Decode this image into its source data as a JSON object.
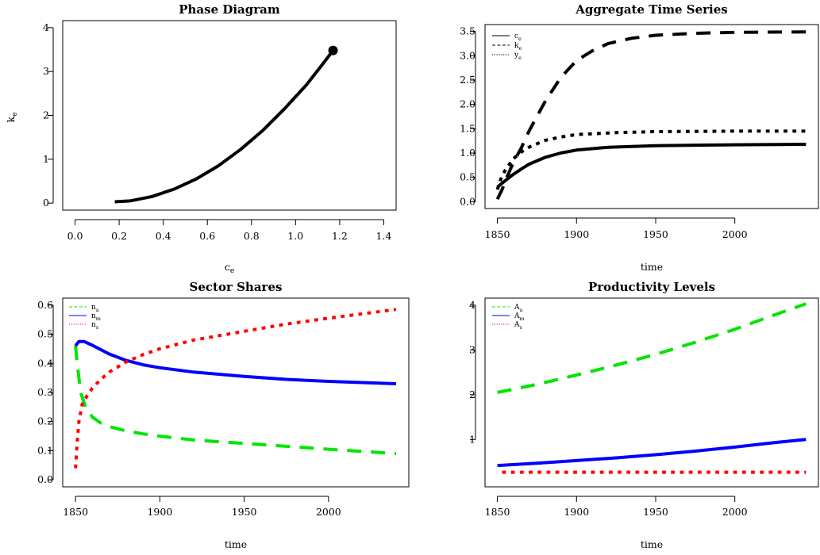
{
  "chart_data": [
    {
      "type": "line",
      "title": "Phase Diagram",
      "xlabel": "c",
      "xlabel_sub": "e",
      "ylabel": "k",
      "ylabel_sub": "e",
      "xlim": [
        0.0,
        1.4
      ],
      "ylim": [
        0,
        4
      ],
      "xticks": [
        0.0,
        0.2,
        0.4,
        0.6,
        0.8,
        1.0,
        1.2,
        1.4
      ],
      "xtick_labels": [
        "0.0",
        "0.2",
        "0.4",
        "0.6",
        "0.8",
        "1.0",
        "1.2",
        "1.4"
      ],
      "yticks": [
        0,
        1,
        2,
        3,
        4
      ],
      "ytick_labels": [
        "0",
        "1",
        "2",
        "3",
        "4"
      ],
      "series": [
        {
          "color": "#000000",
          "dash": "solid",
          "x": [
            0.18,
            0.25,
            0.35,
            0.45,
            0.55,
            0.65,
            0.75,
            0.85,
            0.95,
            1.05,
            1.12,
            1.17
          ],
          "y": [
            0.03,
            0.05,
            0.15,
            0.32,
            0.55,
            0.85,
            1.22,
            1.65,
            2.15,
            2.7,
            3.15,
            3.48
          ]
        }
      ],
      "end_point": {
        "x": 1.17,
        "y": 3.48
      }
    },
    {
      "type": "line",
      "title": "Aggregate Time Series",
      "xlabel": "time",
      "xlim": [
        1850,
        2045
      ],
      "ylim": [
        0.0,
        3.5
      ],
      "xticks": [
        1850,
        1900,
        1950,
        2000
      ],
      "xtick_labels": [
        "1850",
        "1900",
        "1950",
        "2000"
      ],
      "yticks": [
        0.0,
        0.5,
        1.0,
        1.5,
        2.0,
        2.5,
        3.0,
        3.5
      ],
      "ytick_labels": [
        "0.0",
        "0.5",
        "1.0",
        "1.5",
        "2.0",
        "2.5",
        "3.0",
        "3.5"
      ],
      "legend_position": "top-left",
      "series": [
        {
          "name": "c",
          "name_sub": "e",
          "color": "#000000",
          "dash": "solid",
          "x": [
            1850,
            1853,
            1856,
            1860,
            1865,
            1870,
            1880,
            1890,
            1900,
            1920,
            1950,
            2000,
            2045
          ],
          "y": [
            0.3,
            0.38,
            0.46,
            0.56,
            0.67,
            0.77,
            0.91,
            1.0,
            1.06,
            1.12,
            1.15,
            1.17,
            1.18
          ]
        },
        {
          "name": "k",
          "name_sub": "e",
          "color": "#000000",
          "dash": "dashed",
          "x": [
            1850,
            1853,
            1856,
            1860,
            1865,
            1870,
            1880,
            1890,
            1900,
            1910,
            1920,
            1935,
            1950,
            1975,
            2000,
            2045
          ],
          "y": [
            0.05,
            0.25,
            0.5,
            0.8,
            1.1,
            1.45,
            2.05,
            2.55,
            2.9,
            3.1,
            3.25,
            3.36,
            3.42,
            3.46,
            3.48,
            3.49
          ]
        },
        {
          "name": "y",
          "name_sub": "e",
          "color": "#000000",
          "dash": "dotted",
          "x": [
            1850,
            1852,
            1855,
            1860,
            1865,
            1870,
            1880,
            1890,
            1900,
            1925,
            1950,
            2000,
            2045
          ],
          "y": [
            0.25,
            0.45,
            0.65,
            0.88,
            1.02,
            1.12,
            1.26,
            1.33,
            1.38,
            1.42,
            1.44,
            1.45,
            1.45
          ]
        }
      ]
    },
    {
      "type": "line",
      "title": "Sector Shares",
      "xlabel": "time",
      "xlim": [
        1850,
        2040
      ],
      "ylim": [
        0.0,
        0.6
      ],
      "xticks": [
        1850,
        1900,
        1950,
        2000
      ],
      "xtick_labels": [
        "1850",
        "1900",
        "1950",
        "2000"
      ],
      "yticks": [
        0.0,
        0.1,
        0.2,
        0.3,
        0.4,
        0.5,
        0.6
      ],
      "ytick_labels": [
        "0.0",
        "0.1",
        "0.2",
        "0.3",
        "0.4",
        "0.5",
        "0.6"
      ],
      "legend_position": "top-left",
      "series": [
        {
          "name": "n",
          "name_sub": "a",
          "color": "#00e600",
          "dash": "dashed",
          "x": [
            1850,
            1851,
            1853,
            1856,
            1860,
            1865,
            1870,
            1880,
            1890,
            1900,
            1920,
            1950,
            1975,
            2000,
            2040
          ],
          "y": [
            0.46,
            0.4,
            0.3,
            0.25,
            0.215,
            0.195,
            0.183,
            0.168,
            0.158,
            0.15,
            0.137,
            0.125,
            0.115,
            0.105,
            0.09
          ]
        },
        {
          "name": "n",
          "name_sub": "m",
          "color": "#0000ff",
          "dash": "solid",
          "x": [
            1850,
            1852,
            1855,
            1860,
            1870,
            1880,
            1890,
            1900,
            1920,
            1950,
            1975,
            2000,
            2040
          ],
          "y": [
            0.46,
            0.475,
            0.475,
            0.462,
            0.432,
            0.41,
            0.395,
            0.385,
            0.37,
            0.355,
            0.345,
            0.338,
            0.33
          ]
        },
        {
          "name": "n",
          "name_sub": "s",
          "color": "#ff0000",
          "dash": "dotted",
          "x": [
            1850,
            1851,
            1852,
            1854,
            1857,
            1860,
            1865,
            1870,
            1880,
            1890,
            1900,
            1920,
            1950,
            1975,
            2000,
            2040
          ],
          "y": [
            0.04,
            0.13,
            0.2,
            0.26,
            0.29,
            0.315,
            0.345,
            0.37,
            0.405,
            0.43,
            0.45,
            0.48,
            0.51,
            0.535,
            0.555,
            0.585
          ]
        }
      ]
    },
    {
      "type": "line",
      "title": "Productivity Levels",
      "xlabel": "time",
      "xlim": [
        1850,
        2045
      ],
      "ylim": [
        0.1,
        4.0
      ],
      "xticks": [
        1850,
        1900,
        1950,
        2000
      ],
      "xtick_labels": [
        "1850",
        "1900",
        "1950",
        "2000"
      ],
      "yticks": [
        1,
        2,
        3,
        4
      ],
      "ytick_labels": [
        "1",
        "2",
        "3",
        "4"
      ],
      "legend_position": "top-left",
      "series": [
        {
          "name": "A",
          "name_sub": "a",
          "color": "#00e600",
          "dash": "dashed",
          "x": [
            1850,
            1875,
            1900,
            1925,
            1950,
            1975,
            2000,
            2025,
            2045
          ],
          "y": [
            2.05,
            2.23,
            2.44,
            2.66,
            2.9,
            3.17,
            3.46,
            3.78,
            4.03
          ]
        },
        {
          "name": "A",
          "name_sub": "m",
          "color": "#0000ff",
          "dash": "solid",
          "x": [
            1850,
            1875,
            1900,
            1925,
            1950,
            1975,
            2000,
            2025,
            2045
          ],
          "y": [
            0.42,
            0.47,
            0.53,
            0.59,
            0.66,
            0.74,
            0.83,
            0.93,
            1.0
          ]
        },
        {
          "name": "A",
          "name_sub": "s",
          "color": "#ff0000",
          "dash": "dotted",
          "x": [
            1853,
            1900,
            1950,
            2000,
            2045
          ],
          "y": [
            0.27,
            0.27,
            0.27,
            0.27,
            0.27
          ]
        }
      ]
    }
  ]
}
